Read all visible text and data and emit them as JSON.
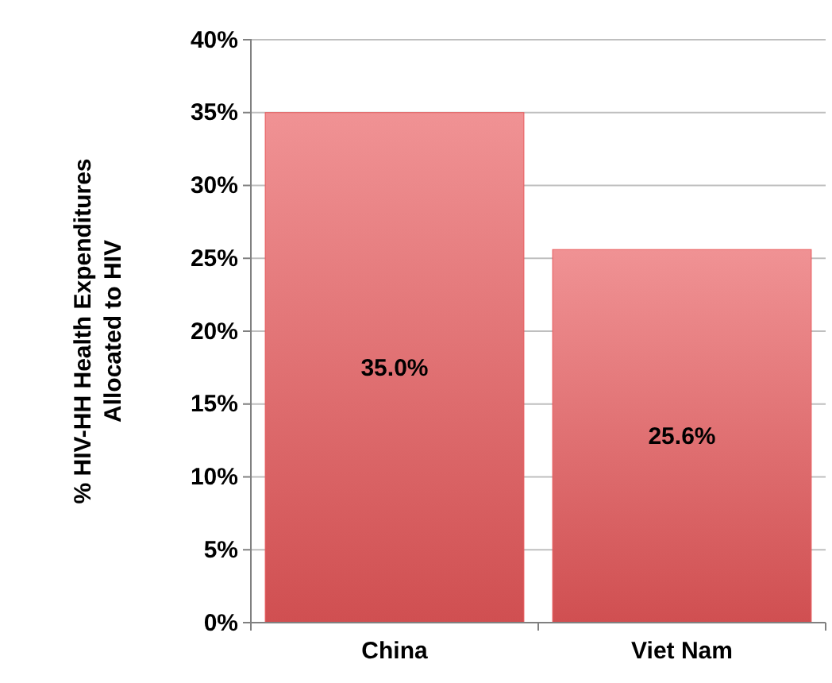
{
  "chart_data": {
    "type": "bar",
    "ylabel": "% HIV-HH Health Expenditures Allocated to HIV",
    "categories": [
      "China",
      "Viet Nam"
    ],
    "values": [
      35.0,
      25.6
    ],
    "value_labels": [
      "35.0%",
      "25.6%"
    ],
    "color": "#e8585a",
    "ylim": [
      0,
      40
    ],
    "yticks": [
      {
        "value": 0,
        "label": "0%"
      },
      {
        "value": 5,
        "label": "5%"
      },
      {
        "value": 10,
        "label": "10%"
      },
      {
        "value": 15,
        "label": "15%"
      },
      {
        "value": 20,
        "label": "20%"
      },
      {
        "value": 25,
        "label": "25%"
      },
      {
        "value": 30,
        "label": "30%"
      },
      {
        "value": 35,
        "label": "35%"
      },
      {
        "value": 40,
        "label": "40%"
      }
    ],
    "grid": "y"
  }
}
